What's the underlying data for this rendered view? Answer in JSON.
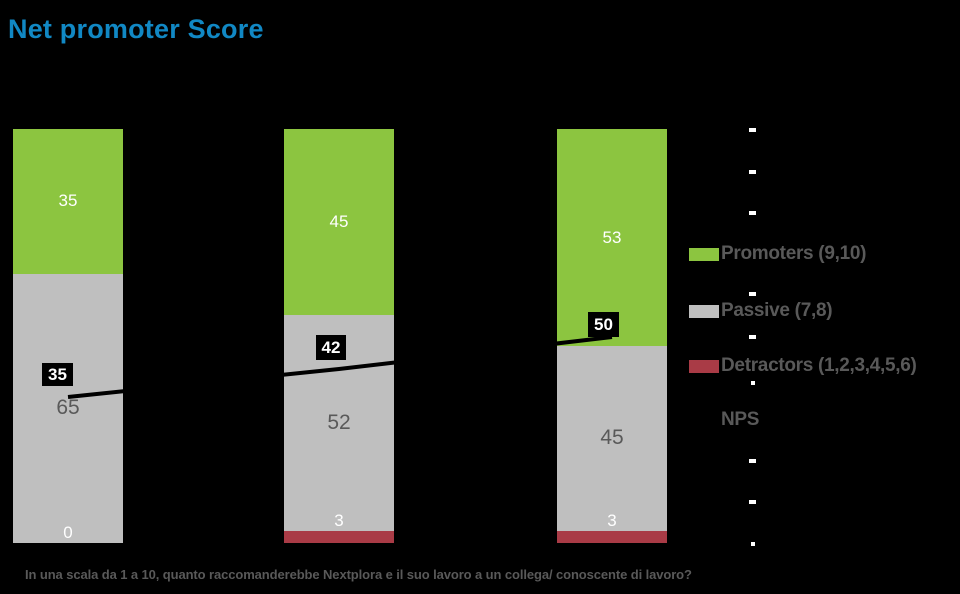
{
  "title": "Net promoter Score",
  "footer": "In una scala da 1 a 10, quanto raccomanderebbe Nextplora e il suo lavoro a un collega/ conoscente di lavoro?",
  "colors": {
    "background": "#000000",
    "title": "#1188C4",
    "promoters": "#8CC540",
    "passive": "#BFBFBF",
    "detractors": "#A93B46",
    "nps_line": "#000000",
    "nps_label_bg": "#000000",
    "nps_label_text": "#FFFFFF",
    "segment_label_light": "#FFFFFF",
    "segment_label_dark": "#595959",
    "legend_text": "#595959",
    "axis_tick": "#FFFFFF"
  },
  "legend": {
    "items": [
      {
        "label": "Promoters (9,10)",
        "swatch": "#8CC540"
      },
      {
        "label": "Passive (7,8)",
        "swatch": "#BFBFBF"
      },
      {
        "label": "Detractors (1,2,3,4,5,6)",
        "swatch": "#A93B46"
      },
      {
        "label": "NPS",
        "swatch": "none"
      }
    ]
  },
  "chart_data": {
    "type": "bar",
    "subtype": "stacked-100-column-with-line",
    "title": "Net promoter Score",
    "categories": [
      "",
      "",
      ""
    ],
    "series": [
      {
        "name": "Promoters (9,10)",
        "color": "#8CC540",
        "values": [
          35,
          45,
          53
        ],
        "label_color": "#FFFFFF"
      },
      {
        "name": "Passive (7,8)",
        "color": "#BFBFBF",
        "values": [
          65,
          52,
          45
        ],
        "label_color": "#595959"
      },
      {
        "name": "Detractors (1,2,3,4,5,6)",
        "color": "#A93B46",
        "values": [
          0,
          3,
          3
        ],
        "label_color": "#FFFFFF"
      }
    ],
    "line_series": {
      "name": "NPS",
      "color": "#000000",
      "values": [
        35,
        42,
        50
      ],
      "label_style": "white-on-black-box"
    },
    "ylim": [
      0,
      100
    ],
    "grid": false,
    "legend_position": "right",
    "secondary_axis_tick_label": "-",
    "xlabel": "",
    "ylabel": ""
  }
}
